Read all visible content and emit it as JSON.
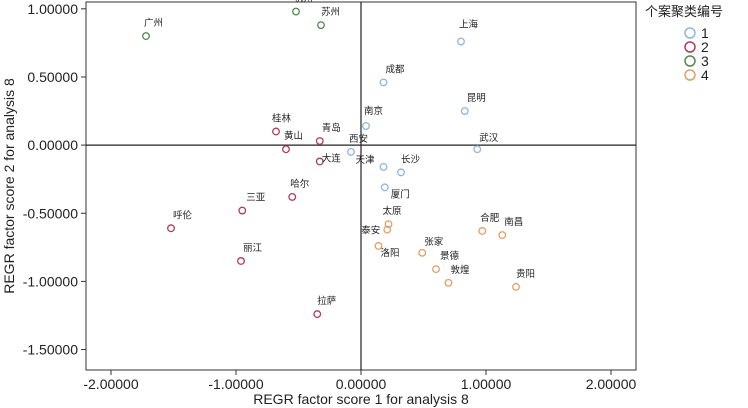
{
  "chart_data": {
    "type": "scatter",
    "xlabel": "REGR factor score   1 for analysis 8",
    "ylabel": "REGR factor score   2 for analysis 8",
    "xlim": [
      -2.2,
      2.2
    ],
    "ylim": [
      -1.65,
      1.05
    ],
    "x_ticks": [
      -2.0,
      -1.0,
      0.0,
      1.0,
      2.0
    ],
    "x_tick_labels": [
      "-2.00000",
      "-1.00000",
      "0.00000",
      "1.00000",
      "2.00000"
    ],
    "y_ticks": [
      1.0,
      0.5,
      0.0,
      -0.5,
      -1.0,
      -1.5
    ],
    "y_tick_labels": [
      "1.00000",
      "0.50000",
      "0.00000",
      "-0.50000",
      "-1.00000",
      "-1.50000"
    ],
    "reference_lines": {
      "x": 0,
      "y": 0
    },
    "legend": {
      "title": "个案聚类编号",
      "position": "top-right",
      "entries": [
        {
          "label": "1",
          "color": "#8fb6dd"
        },
        {
          "label": "2",
          "color": "#b23a5a"
        },
        {
          "label": "3",
          "color": "#4e8a4e"
        },
        {
          "label": "4",
          "color": "#e0a066"
        }
      ]
    },
    "series": [
      {
        "name": "1",
        "color": "#8fb6dd",
        "points": [
          {
            "label": "上海",
            "x": 0.8,
            "y": 0.76
          },
          {
            "label": "成都",
            "x": 0.18,
            "y": 0.46
          },
          {
            "label": "昆明",
            "x": 0.83,
            "y": 0.25
          },
          {
            "label": "南京",
            "x": 0.04,
            "y": 0.14
          },
          {
            "label": "武汉",
            "x": 0.93,
            "y": -0.03
          },
          {
            "label": "西安",
            "x": -0.08,
            "y": -0.05
          },
          {
            "label": "天津",
            "x": 0.18,
            "y": -0.16
          },
          {
            "label": "长沙",
            "x": 0.32,
            "y": -0.2
          },
          {
            "label": "厦门",
            "x": 0.19,
            "y": -0.31
          }
        ]
      },
      {
        "name": "2",
        "color": "#b23a5a",
        "points": [
          {
            "label": "桂林",
            "x": -0.68,
            "y": 0.1
          },
          {
            "label": "黄山",
            "x": -0.6,
            "y": -0.03
          },
          {
            "label": "青岛",
            "x": -0.33,
            "y": 0.03
          },
          {
            "label": "大连",
            "x": -0.33,
            "y": -0.12
          },
          {
            "label": "哈尔",
            "x": -0.55,
            "y": -0.38
          },
          {
            "label": "三亚",
            "x": -0.95,
            "y": -0.48
          },
          {
            "label": "呼伦",
            "x": -1.52,
            "y": -0.61
          },
          {
            "label": "丽江",
            "x": -0.96,
            "y": -0.85
          },
          {
            "label": "拉萨",
            "x": -0.35,
            "y": -1.24
          }
        ]
      },
      {
        "name": "3",
        "color": "#4e8a4e",
        "points": [
          {
            "label": "杭州",
            "x": -0.52,
            "y": 0.98
          },
          {
            "label": "苏州",
            "x": -0.32,
            "y": 0.88
          },
          {
            "label": "广州",
            "x": -1.72,
            "y": 0.8
          }
        ]
      },
      {
        "name": "4",
        "color": "#e0a066",
        "points": [
          {
            "label": "太原",
            "x": 0.22,
            "y": -0.58
          },
          {
            "label": "泰安",
            "x": 0.21,
            "y": -0.62
          },
          {
            "label": "洛阳",
            "x": 0.14,
            "y": -0.74
          },
          {
            "label": "张家",
            "x": 0.49,
            "y": -0.79
          },
          {
            "label": "景德",
            "x": 0.6,
            "y": -0.91
          },
          {
            "label": "敦煌",
            "x": 0.7,
            "y": -1.01
          },
          {
            "label": "合肥",
            "x": 0.97,
            "y": -0.63
          },
          {
            "label": "南昌",
            "x": 1.13,
            "y": -0.66
          },
          {
            "label": "贵阳",
            "x": 1.24,
            "y": -1.04
          }
        ]
      }
    ]
  }
}
